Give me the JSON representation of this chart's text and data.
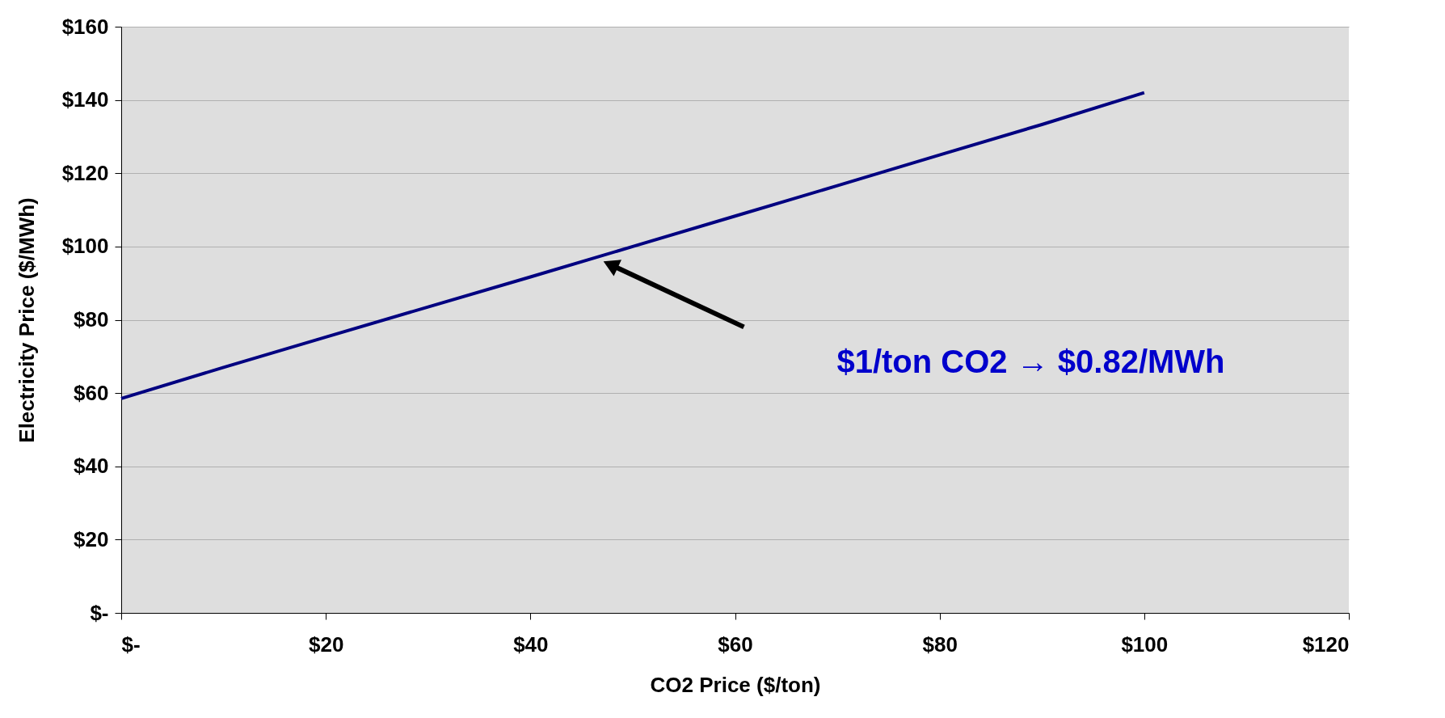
{
  "chart_data": {
    "type": "line",
    "xlabel": "CO2 Price ($/ton)",
    "ylabel": "Electricity Price ($/MWh)",
    "x": [
      0,
      10,
      20,
      30,
      40,
      50,
      60,
      70,
      80,
      90,
      100
    ],
    "series": [
      {
        "color": "#000080",
        "values": [
          58.5,
          67,
          75.3,
          83.5,
          91.7,
          100,
          108.3,
          116.6,
          125,
          133.3,
          142
        ]
      }
    ],
    "xlim": [
      0,
      120
    ],
    "xticks": [
      {
        "value": 0,
        "label": "$-"
      },
      {
        "value": 20,
        "label": "$20"
      },
      {
        "value": 40,
        "label": "$40"
      },
      {
        "value": 60,
        "label": "$60"
      },
      {
        "value": 80,
        "label": "$80"
      },
      {
        "value": 100,
        "label": "$100"
      },
      {
        "value": 120,
        "label": "$120"
      }
    ],
    "ylim": [
      0,
      160
    ],
    "yticks": [
      {
        "value": 0,
        "label": "$-"
      },
      {
        "value": 20,
        "label": "$20"
      },
      {
        "value": 40,
        "label": "$40"
      },
      {
        "value": 60,
        "label": "$60"
      },
      {
        "value": 80,
        "label": "$80"
      },
      {
        "value": 100,
        "label": "$100"
      },
      {
        "value": 120,
        "label": "$120"
      },
      {
        "value": 140,
        "label": "$140"
      },
      {
        "value": 160,
        "label": "$160"
      }
    ],
    "grid": "y",
    "marker": "none",
    "line_style": "solid",
    "annotations": [
      "$1/ton CO2  → $0.82/MWh"
    ]
  }
}
